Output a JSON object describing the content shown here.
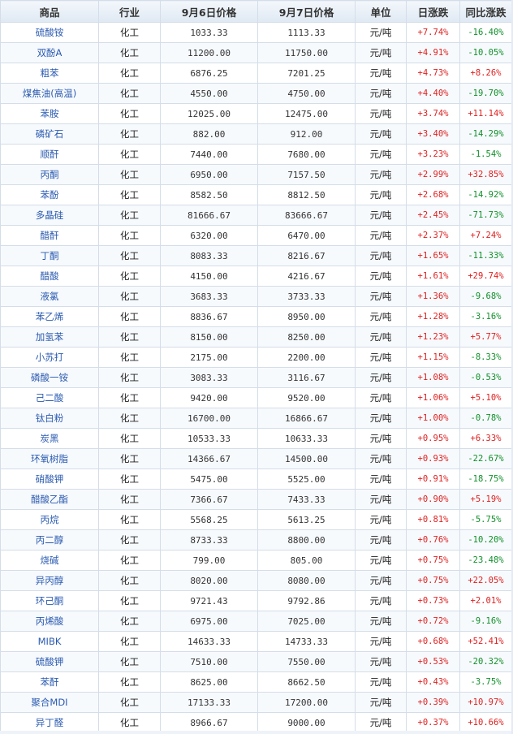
{
  "headers": [
    "商品",
    "行业",
    "9月6日价格",
    "9月7日价格",
    "单位",
    "日涨跌",
    "同比涨跌"
  ],
  "rows": [
    {
      "name": "硫酸铵",
      "industry": "化工",
      "p1": "1033.33",
      "p2": "1113.33",
      "unit": "元/吨",
      "day": "+7.74%",
      "yoy": "-16.40%"
    },
    {
      "name": "双酚A",
      "industry": "化工",
      "p1": "11200.00",
      "p2": "11750.00",
      "unit": "元/吨",
      "day": "+4.91%",
      "yoy": "-10.05%"
    },
    {
      "name": "粗苯",
      "industry": "化工",
      "p1": "6876.25",
      "p2": "7201.25",
      "unit": "元/吨",
      "day": "+4.73%",
      "yoy": "+8.26%"
    },
    {
      "name": "煤焦油(高温)",
      "industry": "化工",
      "p1": "4550.00",
      "p2": "4750.00",
      "unit": "元/吨",
      "day": "+4.40%",
      "yoy": "-19.70%"
    },
    {
      "name": "苯胺",
      "industry": "化工",
      "p1": "12025.00",
      "p2": "12475.00",
      "unit": "元/吨",
      "day": "+3.74%",
      "yoy": "+11.14%"
    },
    {
      "name": "磷矿石",
      "industry": "化工",
      "p1": "882.00",
      "p2": "912.00",
      "unit": "元/吨",
      "day": "+3.40%",
      "yoy": "-14.29%"
    },
    {
      "name": "顺酐",
      "industry": "化工",
      "p1": "7440.00",
      "p2": "7680.00",
      "unit": "元/吨",
      "day": "+3.23%",
      "yoy": "-1.54%"
    },
    {
      "name": "丙酮",
      "industry": "化工",
      "p1": "6950.00",
      "p2": "7157.50",
      "unit": "元/吨",
      "day": "+2.99%",
      "yoy": "+32.85%"
    },
    {
      "name": "苯酚",
      "industry": "化工",
      "p1": "8582.50",
      "p2": "8812.50",
      "unit": "元/吨",
      "day": "+2.68%",
      "yoy": "-14.92%"
    },
    {
      "name": "多晶硅",
      "industry": "化工",
      "p1": "81666.67",
      "p2": "83666.67",
      "unit": "元/吨",
      "day": "+2.45%",
      "yoy": "-71.73%"
    },
    {
      "name": "醋酐",
      "industry": "化工",
      "p1": "6320.00",
      "p2": "6470.00",
      "unit": "元/吨",
      "day": "+2.37%",
      "yoy": "+7.24%"
    },
    {
      "name": "丁酮",
      "industry": "化工",
      "p1": "8083.33",
      "p2": "8216.67",
      "unit": "元/吨",
      "day": "+1.65%",
      "yoy": "-11.33%"
    },
    {
      "name": "醋酸",
      "industry": "化工",
      "p1": "4150.00",
      "p2": "4216.67",
      "unit": "元/吨",
      "day": "+1.61%",
      "yoy": "+29.74%"
    },
    {
      "name": "液氯",
      "industry": "化工",
      "p1": "3683.33",
      "p2": "3733.33",
      "unit": "元/吨",
      "day": "+1.36%",
      "yoy": "-9.68%"
    },
    {
      "name": "苯乙烯",
      "industry": "化工",
      "p1": "8836.67",
      "p2": "8950.00",
      "unit": "元/吨",
      "day": "+1.28%",
      "yoy": "-3.16%"
    },
    {
      "name": "加氢苯",
      "industry": "化工",
      "p1": "8150.00",
      "p2": "8250.00",
      "unit": "元/吨",
      "day": "+1.23%",
      "yoy": "+5.77%"
    },
    {
      "name": "小苏打",
      "industry": "化工",
      "p1": "2175.00",
      "p2": "2200.00",
      "unit": "元/吨",
      "day": "+1.15%",
      "yoy": "-8.33%"
    },
    {
      "name": "磷酸一铵",
      "industry": "化工",
      "p1": "3083.33",
      "p2": "3116.67",
      "unit": "元/吨",
      "day": "+1.08%",
      "yoy": "-0.53%"
    },
    {
      "name": "己二酸",
      "industry": "化工",
      "p1": "9420.00",
      "p2": "9520.00",
      "unit": "元/吨",
      "day": "+1.06%",
      "yoy": "+5.10%"
    },
    {
      "name": "钛白粉",
      "industry": "化工",
      "p1": "16700.00",
      "p2": "16866.67",
      "unit": "元/吨",
      "day": "+1.00%",
      "yoy": "-0.78%"
    },
    {
      "name": "炭黑",
      "industry": "化工",
      "p1": "10533.33",
      "p2": "10633.33",
      "unit": "元/吨",
      "day": "+0.95%",
      "yoy": "+6.33%"
    },
    {
      "name": "环氧树脂",
      "industry": "化工",
      "p1": "14366.67",
      "p2": "14500.00",
      "unit": "元/吨",
      "day": "+0.93%",
      "yoy": "-22.67%"
    },
    {
      "name": "硝酸钾",
      "industry": "化工",
      "p1": "5475.00",
      "p2": "5525.00",
      "unit": "元/吨",
      "day": "+0.91%",
      "yoy": "-18.75%"
    },
    {
      "name": "醋酸乙酯",
      "industry": "化工",
      "p1": "7366.67",
      "p2": "7433.33",
      "unit": "元/吨",
      "day": "+0.90%",
      "yoy": "+5.19%"
    },
    {
      "name": "丙烷",
      "industry": "化工",
      "p1": "5568.25",
      "p2": "5613.25",
      "unit": "元/吨",
      "day": "+0.81%",
      "yoy": "-5.75%"
    },
    {
      "name": "丙二醇",
      "industry": "化工",
      "p1": "8733.33",
      "p2": "8800.00",
      "unit": "元/吨",
      "day": "+0.76%",
      "yoy": "-10.20%"
    },
    {
      "name": "烧碱",
      "industry": "化工",
      "p1": "799.00",
      "p2": "805.00",
      "unit": "元/吨",
      "day": "+0.75%",
      "yoy": "-23.48%"
    },
    {
      "name": "异丙醇",
      "industry": "化工",
      "p1": "8020.00",
      "p2": "8080.00",
      "unit": "元/吨",
      "day": "+0.75%",
      "yoy": "+22.05%"
    },
    {
      "name": "环己酮",
      "industry": "化工",
      "p1": "9721.43",
      "p2": "9792.86",
      "unit": "元/吨",
      "day": "+0.73%",
      "yoy": "+2.01%"
    },
    {
      "name": "丙烯酸",
      "industry": "化工",
      "p1": "6975.00",
      "p2": "7025.00",
      "unit": "元/吨",
      "day": "+0.72%",
      "yoy": "-9.16%"
    },
    {
      "name": "MIBK",
      "industry": "化工",
      "p1": "14633.33",
      "p2": "14733.33",
      "unit": "元/吨",
      "day": "+0.68%",
      "yoy": "+52.41%"
    },
    {
      "name": "硫酸钾",
      "industry": "化工",
      "p1": "7510.00",
      "p2": "7550.00",
      "unit": "元/吨",
      "day": "+0.53%",
      "yoy": "-20.32%"
    },
    {
      "name": "苯酐",
      "industry": "化工",
      "p1": "8625.00",
      "p2": "8662.50",
      "unit": "元/吨",
      "day": "+0.43%",
      "yoy": "-3.75%"
    },
    {
      "name": "聚合MDI",
      "industry": "化工",
      "p1": "17133.33",
      "p2": "17200.00",
      "unit": "元/吨",
      "day": "+0.39%",
      "yoy": "+10.97%"
    },
    {
      "name": "异丁醛",
      "industry": "化工",
      "p1": "8966.67",
      "p2": "9000.00",
      "unit": "元/吨",
      "day": "+0.37%",
      "yoy": "+10.66%"
    }
  ],
  "colors": {
    "up": "#e02020",
    "down": "#10902a",
    "link": "#2a5ab0",
    "border": "#d4dde8"
  }
}
